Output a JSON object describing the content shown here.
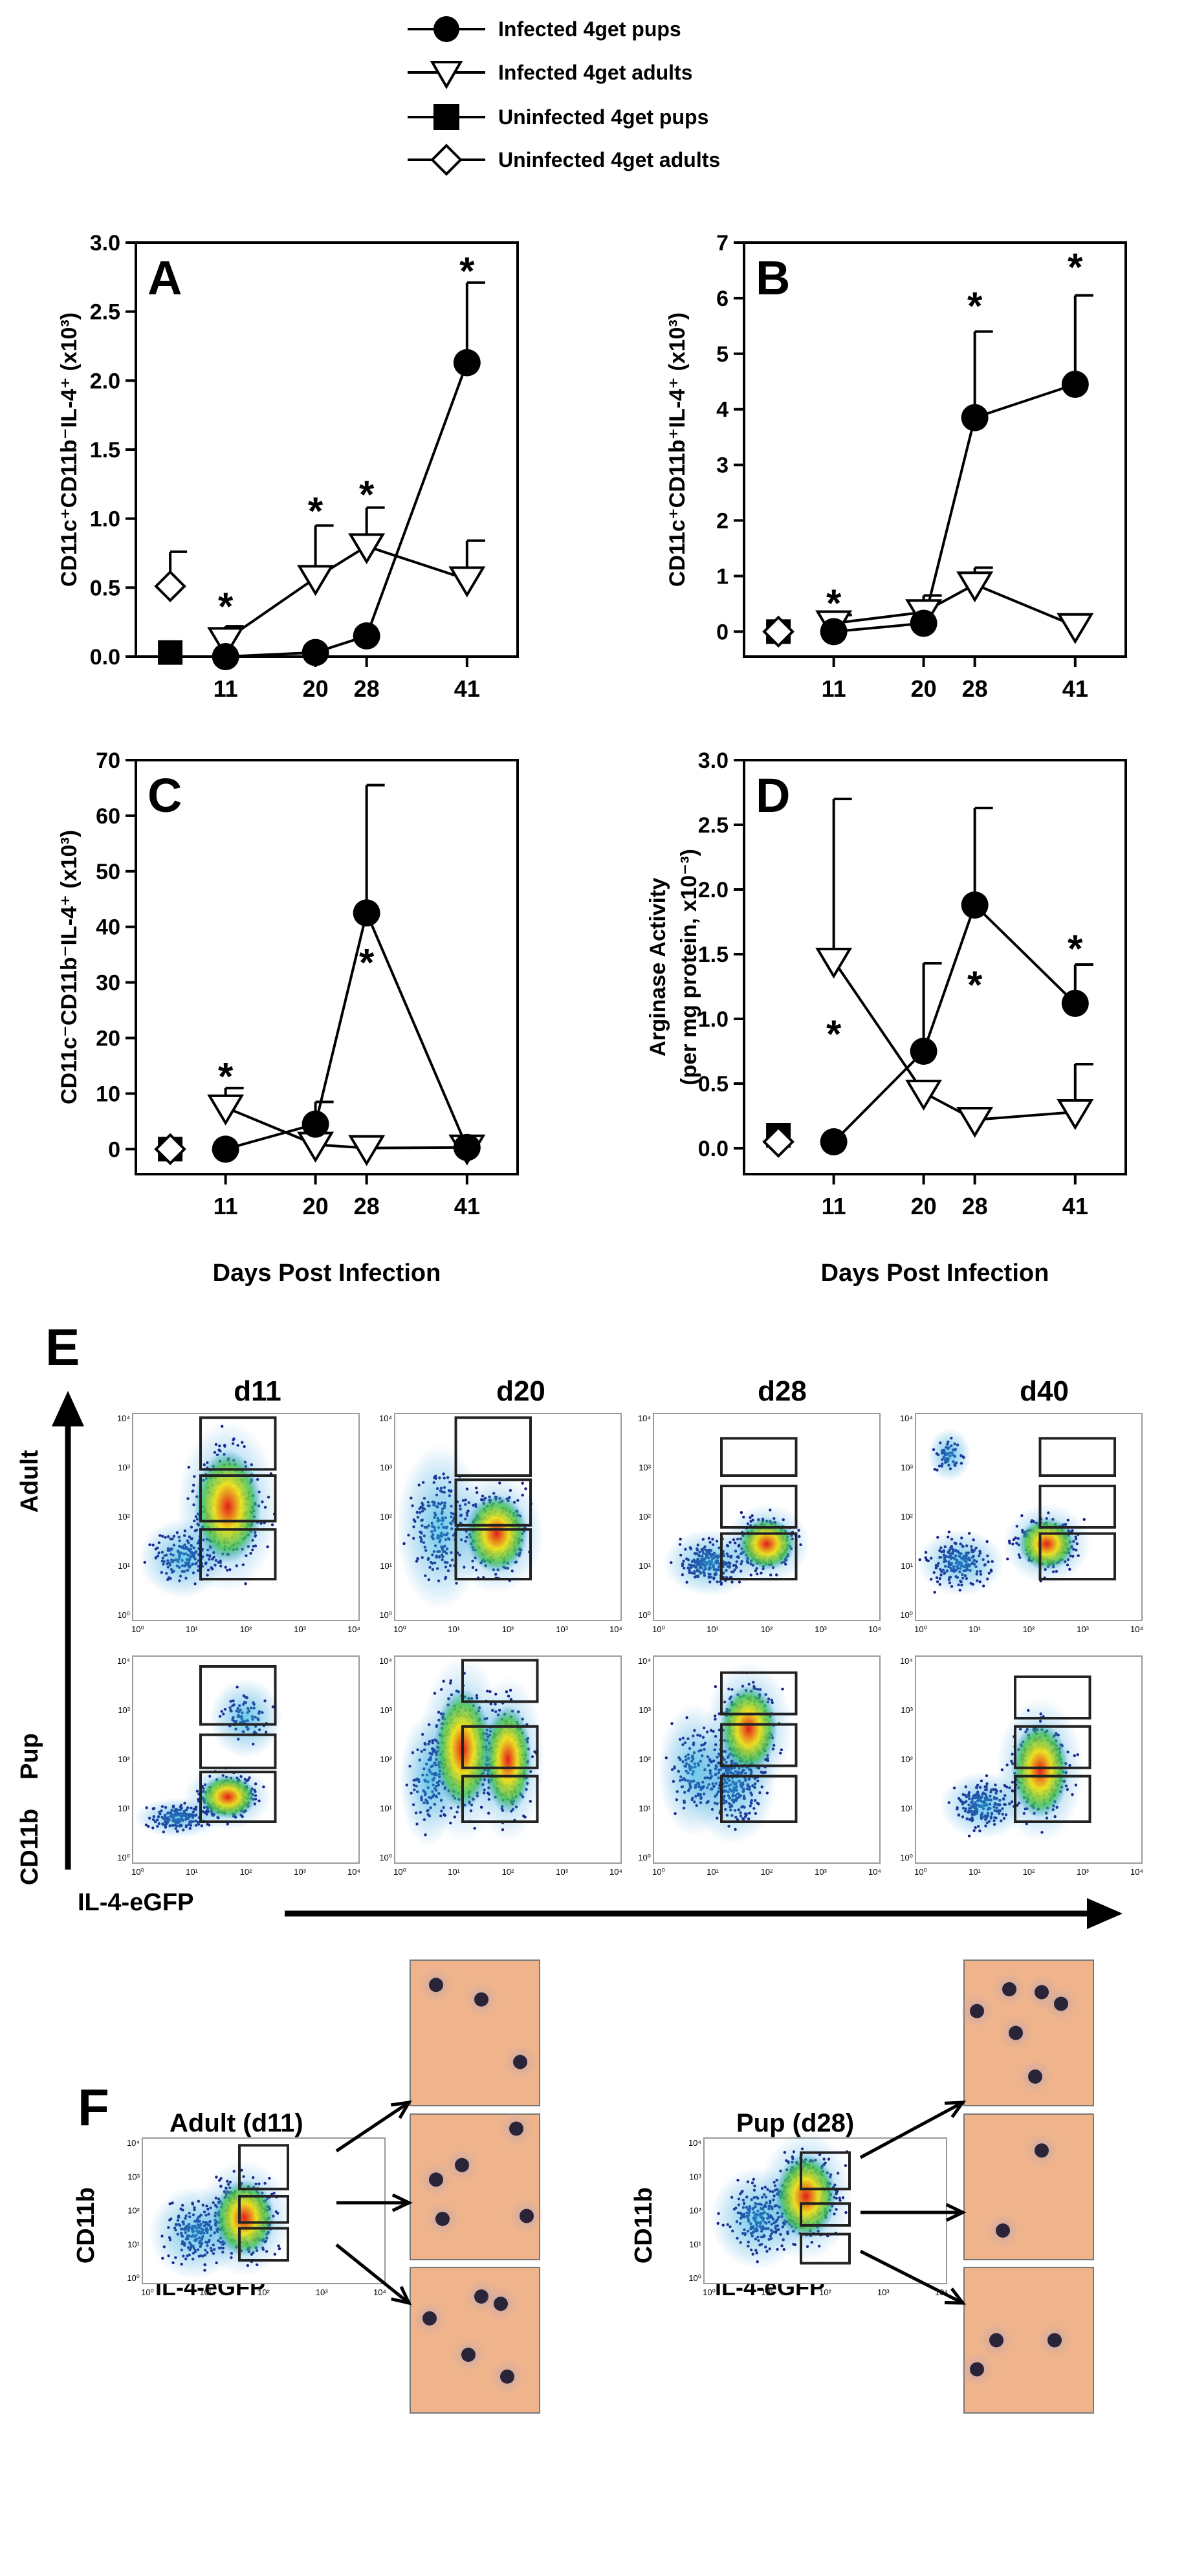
{
  "legend": {
    "entries": [
      "Infected 4get pups",
      "Infected 4get adults",
      "Uninfected 4get pups",
      "Uninfected 4get adults"
    ]
  },
  "chart_data": [
    {
      "panel": "A",
      "type": "line",
      "title": "",
      "xlabel": "",
      "ylabel": "CD11c⁺CD11b⁻IL-4⁺ (x10³)",
      "ylim": [
        0,
        3
      ],
      "yticks": [
        "0.0",
        "0.5",
        "1.0",
        "1.5",
        "2.0",
        "2.5",
        "3.0"
      ],
      "ytick_values": [
        0,
        0.5,
        1,
        1.5,
        2,
        2.5,
        3
      ],
      "xticks": [
        "11",
        "20",
        "28",
        "41"
      ],
      "x": [
        11,
        20,
        28,
        41
      ],
      "series": [
        {
          "name": "Infected 4get pups",
          "values": [
            0.0,
            0.03,
            0.15,
            2.13
          ],
          "errors": [
            0,
            0,
            0,
            0.58
          ]
        },
        {
          "name": "Infected 4get adults",
          "values": [
            0.12,
            0.57,
            0.8,
            0.56
          ],
          "errors": [
            0.1,
            0.38,
            0.28,
            0.28
          ]
        }
      ],
      "uninfected": [
        {
          "name": "Uninfected 4get pups",
          "value": 0.03,
          "error": 0
        },
        {
          "name": "Uninfected 4get adults",
          "value": 0.51,
          "error": 0.25
        }
      ],
      "annotations": [
        {
          "x": 11,
          "y": 0.38,
          "text": "*"
        },
        {
          "x": 20,
          "y": 1.07,
          "text": "*"
        },
        {
          "x": 28,
          "y": 1.19,
          "text": "*"
        },
        {
          "x": 41,
          "y": 2.81,
          "text": "*"
        }
      ]
    },
    {
      "panel": "B",
      "type": "line",
      "title": "",
      "xlabel": "",
      "ylabel": "CD11c⁺CD11b⁺IL-4⁺ (x10³)",
      "ylim": [
        -0.45,
        7
      ],
      "yticks": [
        "0",
        "1",
        "2",
        "3",
        "4",
        "5",
        "6",
        "7"
      ],
      "ytick_values": [
        0,
        1,
        2,
        3,
        4,
        5,
        6,
        7
      ],
      "xticks": [
        "11",
        "20",
        "28",
        "41"
      ],
      "x": [
        11,
        20,
        28,
        41
      ],
      "series": [
        {
          "name": "Infected 4get pups",
          "values": [
            0.0,
            0.15,
            3.85,
            4.45
          ],
          "errors": [
            0,
            0,
            1.55,
            1.6
          ]
        },
        {
          "name": "Infected 4get adults",
          "values": [
            0.15,
            0.35,
            0.85,
            0.1
          ],
          "errors": [
            0.15,
            0.3,
            0.3,
            0
          ]
        }
      ],
      "uninfected": [
        {
          "name": "Uninfected 4get pups",
          "value": 0.0,
          "error": 0
        },
        {
          "name": "Uninfected 4get adults",
          "value": 0.0,
          "error": 0
        }
      ],
      "annotations": [
        {
          "x": 11,
          "y": 0.55,
          "text": "*"
        },
        {
          "x": 28,
          "y": 5.9,
          "text": "*"
        },
        {
          "x": 41,
          "y": 6.6,
          "text": "*"
        }
      ]
    },
    {
      "panel": "C",
      "type": "line",
      "title": "",
      "xlabel": "Days Post Infection",
      "ylabel": "CD11c⁻CD11b⁻IL-4⁺ (x10³)",
      "ylim": [
        -4.5,
        70
      ],
      "yticks": [
        "0",
        "10",
        "20",
        "30",
        "40",
        "50",
        "60",
        "70"
      ],
      "ytick_values": [
        0,
        10,
        20,
        30,
        40,
        50,
        60,
        70
      ],
      "xticks": [
        "11",
        "20",
        "28",
        "41"
      ],
      "x": [
        11,
        20,
        28,
        41
      ],
      "series": [
        {
          "name": "Infected 4get pups",
          "values": [
            0.0,
            4.5,
            42.5,
            0.3
          ],
          "errors": [
            0,
            4.0,
            23.0,
            0
          ]
        },
        {
          "name": "Infected 4get adults",
          "values": [
            7.5,
            0.8,
            0.2,
            0.3
          ],
          "errors": [
            3.5,
            0,
            0,
            0
          ]
        }
      ],
      "uninfected": [
        {
          "name": "Uninfected 4get pups",
          "value": 0.0,
          "error": 0
        },
        {
          "name": "Uninfected 4get adults",
          "value": 0.0,
          "error": 0
        }
      ],
      "annotations": [
        {
          "x": 11,
          "y": 13.5,
          "text": "*"
        },
        {
          "x": 28,
          "y": 34.0,
          "text": "*"
        }
      ]
    },
    {
      "panel": "D",
      "type": "line",
      "title": "",
      "xlabel": "Days Post Infection",
      "ylabel": "Arginase Activity",
      "ylabel2": "(per mg protein, x10⁻³)",
      "ylim": [
        -0.2,
        3
      ],
      "yticks": [
        "0.0",
        "0.5",
        "1.0",
        "1.5",
        "2.0",
        "2.5",
        "3.0"
      ],
      "ytick_values": [
        0,
        0.5,
        1,
        1.5,
        2,
        2.5,
        3
      ],
      "xticks": [
        "11",
        "20",
        "28",
        "41"
      ],
      "x": [
        11,
        20,
        28,
        41
      ],
      "series": [
        {
          "name": "Infected 4get pups",
          "values": [
            0.05,
            0.75,
            1.88,
            1.12
          ],
          "errors": [
            0,
            0.68,
            0.75,
            0.3
          ]
        },
        {
          "name": "Infected 4get adults",
          "values": [
            1.45,
            0.43,
            0.22,
            0.28
          ],
          "errors": [
            1.25,
            0,
            0,
            0.37
          ]
        }
      ],
      "uninfected": [
        {
          "name": "Uninfected 4get pups",
          "value": 0.1,
          "error": 0
        },
        {
          "name": "Uninfected 4get adults",
          "value": 0.05,
          "error": 0
        }
      ],
      "annotations": [
        {
          "x": 11,
          "y": 0.9,
          "text": "*"
        },
        {
          "x": 28,
          "y": 1.28,
          "text": "*"
        },
        {
          "x": 41,
          "y": 1.56,
          "text": "*"
        }
      ]
    }
  ],
  "panel_e": {
    "label": "E",
    "days": [
      "d11",
      "d20",
      "d28",
      "d40"
    ],
    "rows": [
      "Adult",
      "Pup"
    ],
    "y_axis_label": "CD11b",
    "x_axis_label": "IL-4-eGFP",
    "tick_labels": [
      "10⁰",
      "10¹",
      "10²",
      "10³",
      "10⁴"
    ]
  },
  "panel_f": {
    "label": "F",
    "groups": [
      {
        "title": "Adult (d11)",
        "ylabel": "CD11b",
        "xlabel": "IL-4-eGFP"
      },
      {
        "title": "Pup (d28)",
        "ylabel": "CD11b",
        "xlabel": "IL-4-eGFP"
      }
    ]
  },
  "colors": {
    "density_low": "#1a1480",
    "density_mid": "#1f8fd6",
    "density_high_green": "#42c24f",
    "density_yellow": "#f2e31a",
    "density_red": "#e51a1a",
    "cytospin_bg": "#efb48c",
    "cell_nucleus": "#2a2438"
  }
}
